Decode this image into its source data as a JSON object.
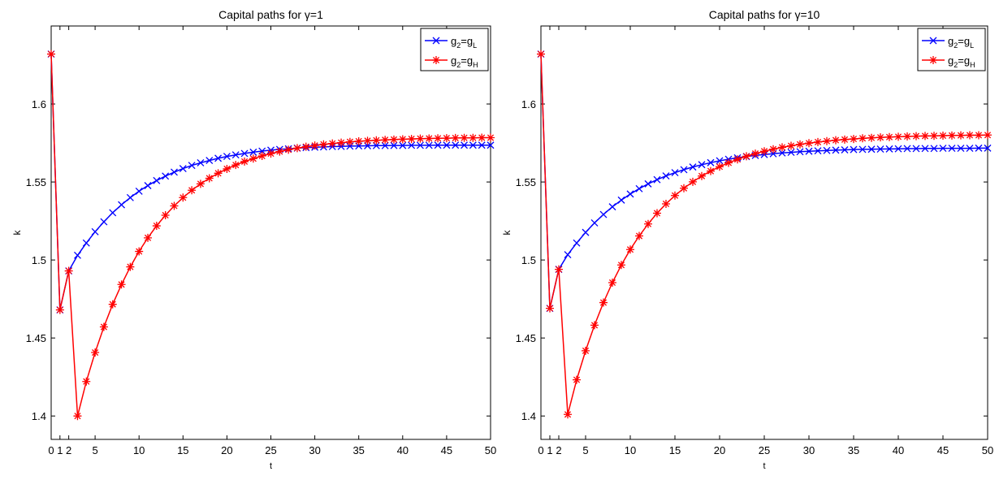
{
  "figure": {
    "colors": {
      "blue": "#0000ff",
      "red": "#ff0000",
      "axis": "#000000",
      "background": "#ffffff"
    }
  },
  "chart_data": [
    {
      "type": "line",
      "title": "Capital paths for γ=1",
      "xlabel": "t",
      "ylabel": "k",
      "xlim": [
        0,
        50
      ],
      "ylim": [
        1.385,
        1.65
      ],
      "grid": false,
      "legend_position": "top-right",
      "x_ticks": [
        0,
        1,
        2,
        5,
        10,
        15,
        20,
        25,
        30,
        35,
        40,
        45,
        50
      ],
      "x_tick_labels": [
        "0",
        "1",
        "2",
        "5",
        "10",
        "15",
        "20",
        "25",
        "30",
        "35",
        "40",
        "45",
        "50"
      ],
      "y_ticks": [
        1.4,
        1.45,
        1.5,
        1.55,
        1.6
      ],
      "y_tick_labels": [
        "1.4",
        "1.45",
        "1.5",
        "1.55",
        "1.6"
      ],
      "series": [
        {
          "name": "g2=gL",
          "legend_base": "g",
          "legend_sub1": "2",
          "legend_mid": "=g",
          "legend_sub2": "L",
          "color": "#0000ff",
          "marker": "x",
          "x": [
            0,
            1,
            2,
            3,
            4,
            5,
            6,
            7,
            8,
            9,
            10,
            11,
            12,
            13,
            14,
            15,
            16,
            17,
            18,
            19,
            20,
            21,
            22,
            23,
            24,
            25,
            26,
            27,
            28,
            29,
            30,
            31,
            32,
            33,
            34,
            35,
            36,
            37,
            38,
            39,
            40,
            41,
            42,
            43,
            44,
            45,
            46,
            47,
            48,
            49,
            50
          ],
          "values": [
            1.632,
            1.468,
            1.493,
            1.503,
            1.5109,
            1.5181,
            1.5245,
            1.5303,
            1.5354,
            1.54,
            1.5441,
            1.5477,
            1.5509,
            1.5538,
            1.5563,
            1.5586,
            1.5606,
            1.5623,
            1.5638,
            1.5652,
            1.5664,
            1.5674,
            1.5683,
            1.5691,
            1.5698,
            1.5704,
            1.5709,
            1.5713,
            1.5717,
            1.572,
            1.5723,
            1.5725,
            1.5727,
            1.5728,
            1.573,
            1.5731,
            1.5732,
            1.5733,
            1.5733,
            1.5734,
            1.5734,
            1.5735,
            1.5735,
            1.5735,
            1.5736,
            1.5736,
            1.5736,
            1.5736,
            1.5736,
            1.5736,
            1.5736
          ]
        },
        {
          "name": "g2=gH",
          "legend_base": "g",
          "legend_sub1": "2",
          "legend_mid": "=g",
          "legend_sub2": "H",
          "color": "#ff0000",
          "marker": "*",
          "x": [
            0,
            1,
            2,
            3,
            4,
            5,
            6,
            7,
            8,
            9,
            10,
            11,
            12,
            13,
            14,
            15,
            16,
            17,
            18,
            19,
            20,
            21,
            22,
            23,
            24,
            25,
            26,
            27,
            28,
            29,
            30,
            31,
            32,
            33,
            34,
            35,
            36,
            37,
            38,
            39,
            40,
            41,
            42,
            43,
            44,
            45,
            46,
            47,
            48,
            49,
            50
          ],
          "values": [
            1.632,
            1.468,
            1.493,
            1.4,
            1.4221,
            1.4407,
            1.4571,
            1.4716,
            1.4843,
            1.4956,
            1.5055,
            1.5142,
            1.5219,
            1.5287,
            1.5347,
            1.54,
            1.5447,
            1.5488,
            1.5524,
            1.5556,
            1.5584,
            1.5609,
            1.5631,
            1.565,
            1.5667,
            1.5682,
            1.5695,
            1.5707,
            1.5717,
            1.5726,
            1.5734,
            1.5741,
            1.5747,
            1.5752,
            1.5757,
            1.5761,
            1.5764,
            1.5767,
            1.577,
            1.5772,
            1.5774,
            1.5776,
            1.5778,
            1.5779,
            1.578,
            1.5781,
            1.5782,
            1.5783,
            1.5783,
            1.5784,
            1.5784
          ]
        }
      ]
    },
    {
      "type": "line",
      "title": "Capital paths for γ=10",
      "xlabel": "t",
      "ylabel": "k",
      "xlim": [
        0,
        50
      ],
      "ylim": [
        1.385,
        1.65
      ],
      "grid": false,
      "legend_position": "top-right",
      "x_ticks": [
        0,
        1,
        2,
        5,
        10,
        15,
        20,
        25,
        30,
        35,
        40,
        45,
        50
      ],
      "x_tick_labels": [
        "0",
        "1",
        "2",
        "5",
        "10",
        "15",
        "20",
        "25",
        "30",
        "35",
        "40",
        "45",
        "50"
      ],
      "y_ticks": [
        1.4,
        1.45,
        1.5,
        1.55,
        1.6
      ],
      "y_tick_labels": [
        "1.4",
        "1.45",
        "1.5",
        "1.55",
        "1.6"
      ],
      "series": [
        {
          "name": "g2=gL",
          "legend_base": "g",
          "legend_sub1": "2",
          "legend_mid": "=g",
          "legend_sub2": "L",
          "color": "#0000ff",
          "marker": "x",
          "x": [
            0,
            1,
            2,
            3,
            4,
            5,
            6,
            7,
            8,
            9,
            10,
            11,
            12,
            13,
            14,
            15,
            16,
            17,
            18,
            19,
            20,
            21,
            22,
            23,
            24,
            25,
            26,
            27,
            28,
            29,
            30,
            31,
            32,
            33,
            34,
            35,
            36,
            37,
            38,
            39,
            40,
            41,
            42,
            43,
            44,
            45,
            46,
            47,
            48,
            49,
            50
          ],
          "values": [
            1.632,
            1.469,
            1.494,
            1.5034,
            1.5109,
            1.5177,
            1.5238,
            1.5292,
            1.5341,
            1.5384,
            1.5423,
            1.5457,
            1.5488,
            1.5515,
            1.5539,
            1.556,
            1.5579,
            1.5596,
            1.5611,
            1.5624,
            1.5636,
            1.5646,
            1.5655,
            1.5663,
            1.567,
            1.5676,
            1.5681,
            1.5686,
            1.569,
            1.5694,
            1.5697,
            1.57,
            1.5702,
            1.5704,
            1.5706,
            1.5708,
            1.5709,
            1.571,
            1.5711,
            1.5712,
            1.5713,
            1.5714,
            1.5714,
            1.5715,
            1.5715,
            1.5716,
            1.5716,
            1.5716,
            1.5716,
            1.5717,
            1.5717
          ]
        },
        {
          "name": "g2=gH",
          "legend_base": "g",
          "legend_sub1": "2",
          "legend_mid": "=g",
          "legend_sub2": "H",
          "color": "#ff0000",
          "marker": "*",
          "x": [
            0,
            1,
            2,
            3,
            4,
            5,
            6,
            7,
            8,
            9,
            10,
            11,
            12,
            13,
            14,
            15,
            16,
            17,
            18,
            19,
            20,
            21,
            22,
            23,
            24,
            25,
            26,
            27,
            28,
            29,
            30,
            31,
            32,
            33,
            34,
            35,
            36,
            37,
            38,
            39,
            40,
            41,
            42,
            43,
            44,
            45,
            46,
            47,
            48,
            49,
            50
          ],
          "values": [
            1.632,
            1.469,
            1.494,
            1.401,
            1.4232,
            1.4418,
            1.4582,
            1.4727,
            1.4855,
            1.4968,
            1.5067,
            1.5154,
            1.5231,
            1.53,
            1.536,
            1.5413,
            1.546,
            1.5501,
            1.5538,
            1.557,
            1.5598,
            1.5623,
            1.5645,
            1.5665,
            1.5682,
            1.5697,
            1.571,
            1.5722,
            1.5732,
            1.5741,
            1.5749,
            1.5756,
            1.5762,
            1.5768,
            1.5772,
            1.5776,
            1.578,
            1.5783,
            1.5786,
            1.5788,
            1.579,
            1.5792,
            1.5794,
            1.5795,
            1.5796,
            1.5797,
            1.5798,
            1.5799,
            1.58,
            1.58,
            1.5801
          ]
        }
      ]
    }
  ]
}
